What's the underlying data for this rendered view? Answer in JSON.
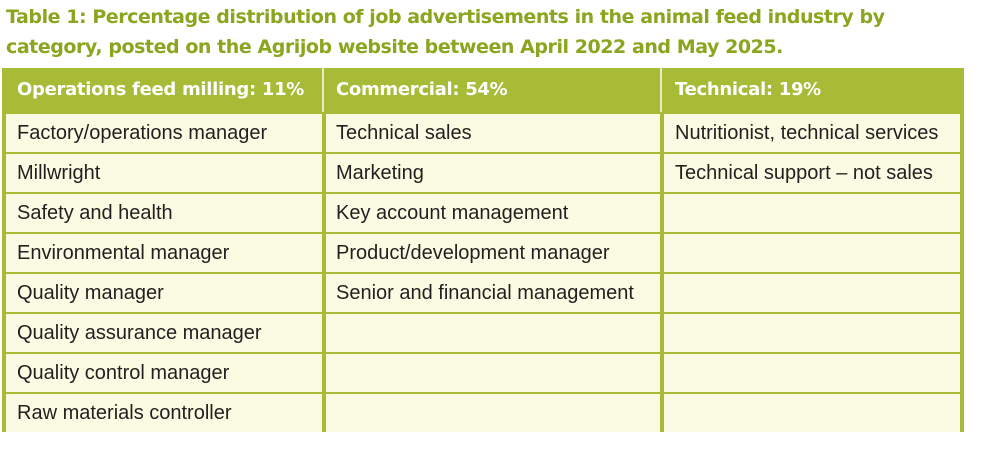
{
  "title": {
    "line1": "Table 1: Percentage distribution of job advertisements in the animal feed industry by",
    "line2": "category, posted on the Agrijob website between April 2022 and May 2025."
  },
  "table": {
    "headers": [
      "Operations feed milling: 11%",
      "Commercial: 54%",
      "Technical: 19%"
    ],
    "rows": [
      [
        "Factory/operations manager",
        "Technical sales",
        "Nutritionist, technical services"
      ],
      [
        "Millwright",
        "Marketing",
        "Technical support – not sales"
      ],
      [
        "Safety and health",
        "Key account management",
        ""
      ],
      [
        "Environmental manager",
        "Product/development manager",
        ""
      ],
      [
        "Quality manager",
        "Senior and financial management",
        ""
      ],
      [
        "Quality assurance manager",
        "",
        ""
      ],
      [
        "Quality control manager",
        "",
        ""
      ],
      [
        "Raw materials controller",
        "",
        ""
      ]
    ]
  },
  "colors": {
    "title": "#8aa51e",
    "header_bg": "#a7bb36",
    "row_bg": "#fbfae2",
    "text": "#231f20"
  }
}
